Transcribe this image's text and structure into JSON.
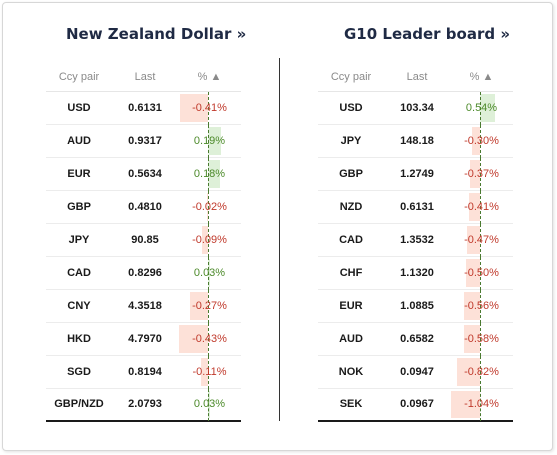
{
  "left_panel": {
    "title": "New Zealand Dollar »",
    "headers": {
      "pair": "Ccy pair",
      "last": "Last",
      "pct": "% ▲"
    },
    "rows": [
      {
        "pair": "USD",
        "last": "0.6131",
        "pct": "-0.41%",
        "value": -0.41
      },
      {
        "pair": "AUD",
        "last": "0.9317",
        "pct": "0.19%",
        "value": 0.19
      },
      {
        "pair": "EUR",
        "last": "0.5634",
        "pct": "0.18%",
        "value": 0.18
      },
      {
        "pair": "GBP",
        "last": "0.4810",
        "pct": "-0.02%",
        "value": -0.02
      },
      {
        "pair": "JPY",
        "last": "90.85",
        "pct": "-0.09%",
        "value": -0.09
      },
      {
        "pair": "CAD",
        "last": "0.8296",
        "pct": "0.03%",
        "value": 0.03
      },
      {
        "pair": "CNY",
        "last": "4.3518",
        "pct": "-0.27%",
        "value": -0.27
      },
      {
        "pair": "HKD",
        "last": "4.7970",
        "pct": "-0.43%",
        "value": -0.43
      },
      {
        "pair": "SGD",
        "last": "0.8194",
        "pct": "-0.11%",
        "value": -0.11
      },
      {
        "pair": "GBP/NZD",
        "last": "2.0793",
        "pct": "0.03%",
        "value": 0.03
      }
    ]
  },
  "right_panel": {
    "title": "G10 Leader board »",
    "headers": {
      "pair": "Ccy pair",
      "last": "Last",
      "pct": "% ▲"
    },
    "rows": [
      {
        "pair": "USD",
        "last": "103.34",
        "pct": "0.54%",
        "value": 0.54
      },
      {
        "pair": "JPY",
        "last": "148.18",
        "pct": "-0.30%",
        "value": -0.3
      },
      {
        "pair": "GBP",
        "last": "1.2749",
        "pct": "-0.37%",
        "value": -0.37
      },
      {
        "pair": "NZD",
        "last": "0.6131",
        "pct": "-0.41%",
        "value": -0.41
      },
      {
        "pair": "CAD",
        "last": "1.3532",
        "pct": "-0.47%",
        "value": -0.47
      },
      {
        "pair": "CHF",
        "last": "1.1320",
        "pct": "-0.50%",
        "value": -0.5
      },
      {
        "pair": "EUR",
        "last": "1.0885",
        "pct": "-0.56%",
        "value": -0.56
      },
      {
        "pair": "AUD",
        "last": "0.6582",
        "pct": "-0.58%",
        "value": -0.58
      },
      {
        "pair": "NOK",
        "last": "0.0947",
        "pct": "-0.82%",
        "value": -0.82
      },
      {
        "pair": "SEK",
        "last": "0.0967",
        "pct": "-1.04%",
        "value": -1.04
      }
    ]
  },
  "colors": {
    "negative_text": "#c0392b",
    "positive_text": "#4c8a2a",
    "negative_bar": "#fde1d8",
    "positive_bar": "#def0d8"
  }
}
